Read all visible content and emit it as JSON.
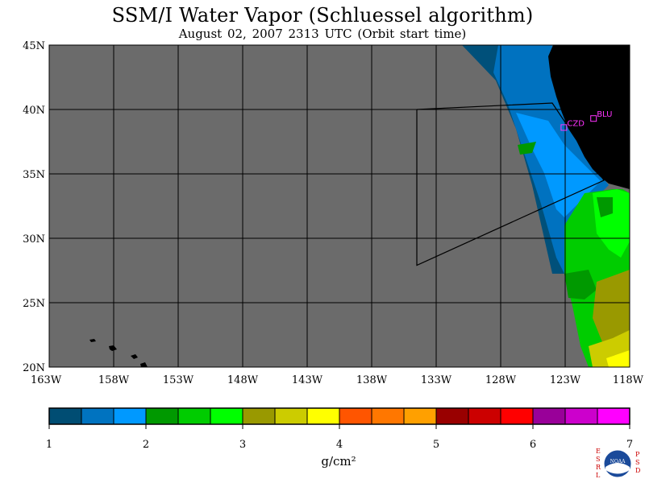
{
  "title": "SSM/I Water Vapor (Schluessel algorithm)",
  "subtitle": "August 02, 2007  2313 UTC  (Orbit start time)",
  "map": {
    "lon_range": [
      -163,
      -118
    ],
    "lat_range": [
      20,
      45
    ],
    "lat_labels": [
      "20N",
      "25N",
      "30N",
      "35N",
      "40N",
      "45N"
    ],
    "lon_labels": [
      "163W",
      "158W",
      "153W",
      "148W",
      "143W",
      "138W",
      "133W",
      "128W",
      "123W",
      "118W"
    ],
    "colors": {
      "ocean_no_data": "#6b6b6b",
      "land": "#000000",
      "grid": "#000000",
      "station_marker": "#ff33ff"
    },
    "stations": [
      {
        "label": "CZD",
        "lon": -123.1,
        "lat": 38.6
      },
      {
        "label": "BLU",
        "lon": -120.8,
        "lat": 39.3
      }
    ],
    "domain_outline": [
      {
        "lon": -134.5,
        "lat": 40.0
      },
      {
        "lon": -134.5,
        "lat": 27.9
      },
      {
        "lon": -120.0,
        "lat": 34.5
      },
      {
        "lon": -124.0,
        "lat": 40.5
      },
      {
        "lon": -134.5,
        "lat": 40.0
      }
    ]
  },
  "colorbar": {
    "unit": "g/cm²",
    "tick_labels": [
      "1",
      "2",
      "3",
      "4",
      "5",
      "6",
      "7"
    ],
    "min": 1,
    "max": 7,
    "colors": [
      "#004d73",
      "#0073c0",
      "#0099ff",
      "#009900",
      "#00cc00",
      "#00ff00",
      "#999900",
      "#cccc00",
      "#ffff00",
      "#ff5500",
      "#ff7700",
      "#ffa000",
      "#990000",
      "#cc0000",
      "#ff0000",
      "#990099",
      "#cc00cc",
      "#ff00ff"
    ]
  },
  "logo": {
    "left_letters": "ESRL",
    "right_letters": "PSD",
    "center_text": "NOAA"
  }
}
